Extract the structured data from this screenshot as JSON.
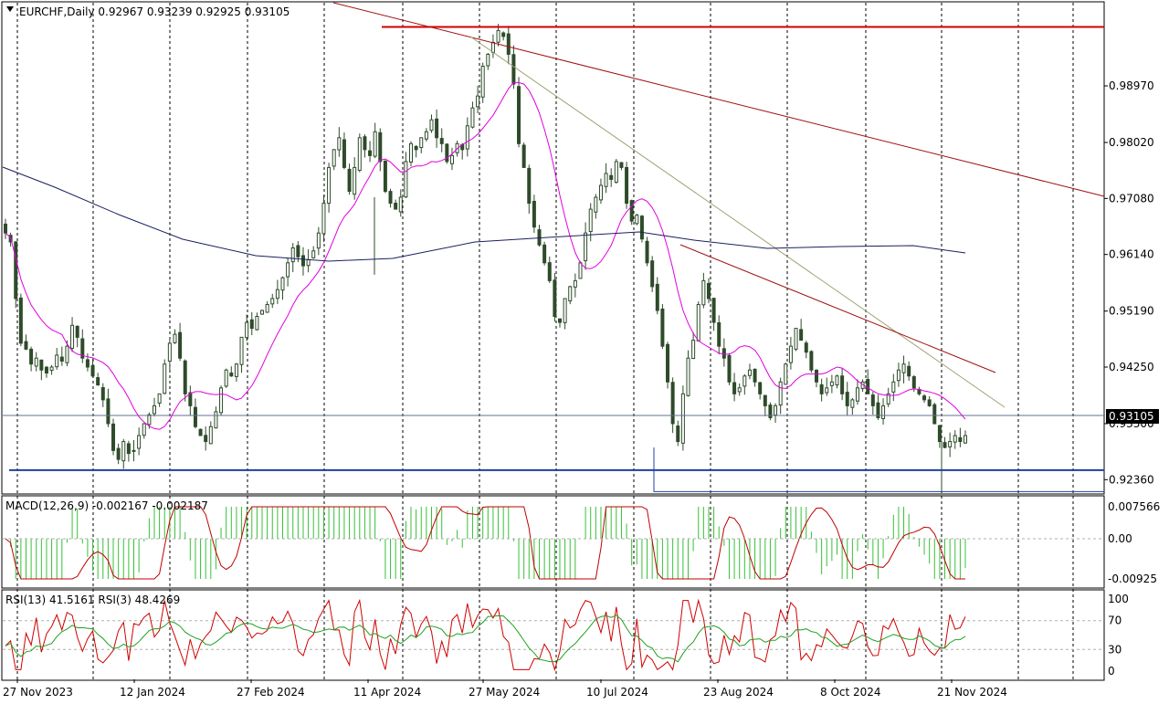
{
  "colors": {
    "background": "#ffffff",
    "grid": "#000000",
    "candle": "#2e4b2a",
    "ma_short": "#e000e0",
    "ma_long": "#1a1f5e",
    "resistance": "#d00000",
    "support": "#2040a0",
    "trend_main": "#a01010",
    "trend_light": "#a0a070",
    "macd_hist": "#38c038",
    "macd_signal": "#c00000",
    "rsi_slow": "#20a020",
    "rsi_fast": "#d00000",
    "price_tag_bg": "#000000",
    "price_tag_fg": "#ffffff"
  },
  "main_panel": {
    "header": "EURCHF,Daily  0.92967 0.93239 0.92925 0.93105",
    "current_price": "0.93105"
  },
  "macd_panel": {
    "header": "MACD(12,26,9) -0.002167 -0.002187"
  },
  "rsi_panel": {
    "header": "RSI(13) 41.5161  RSI(3) 48.4269"
  },
  "chart_data": {
    "type": "candlestick",
    "symbol": "EURCHF",
    "timeframe": "Daily",
    "ohlc": {
      "open": 0.92967,
      "high": 0.93239,
      "low": 0.92925,
      "close": 0.93105
    },
    "x_tick_labels": [
      "27 Nov 2023",
      "12 Jan 2024",
      "27 Feb 2024",
      "11 Apr 2024",
      "27 May 2024",
      "10 Jul 2024",
      "23 Aug 2024",
      "8 Oct 2024",
      "21 Nov 2024"
    ],
    "y_tick_labels": [
      "0.98970",
      "0.98020",
      "0.97080",
      "0.96140",
      "0.95190",
      "0.94250",
      "0.93300",
      "0.92360"
    ],
    "ylim": [
      0.9215,
      1.0035
    ],
    "series": [
      {
        "type": "candles",
        "points": [
          0.965,
          0.9635,
          0.954,
          0.9465,
          0.9455,
          0.943,
          0.944,
          0.942,
          0.9415,
          0.9425,
          0.9445,
          0.9435,
          0.946,
          0.9495,
          0.9475,
          0.944,
          0.9425,
          0.941,
          0.9395,
          0.937,
          0.933,
          0.9285,
          0.927,
          0.93,
          0.928,
          0.9285,
          0.931,
          0.933,
          0.9345,
          0.936,
          0.938,
          0.943,
          0.9465,
          0.948,
          0.944,
          0.938,
          0.936,
          0.9325,
          0.931,
          0.93,
          0.9325,
          0.935,
          0.939,
          0.942,
          0.941,
          0.943,
          0.9475,
          0.95,
          0.949,
          0.951,
          0.952,
          0.953,
          0.954,
          0.9555,
          0.9575,
          0.96,
          0.9625,
          0.961,
          0.9595,
          0.9605,
          0.962,
          0.965,
          0.97,
          0.976,
          0.979,
          0.981,
          0.976,
          0.972,
          0.976,
          0.981,
          0.979,
          0.978,
          0.982,
          0.977,
          0.972,
          0.97,
          0.969,
          0.971,
          0.977,
          0.98,
          0.979,
          0.981,
          0.982,
          0.984,
          0.981,
          0.98,
          0.977,
          0.978,
          0.98,
          0.979,
          0.983,
          0.986,
          0.988,
          0.993,
          0.995,
          0.997,
          0.999,
          0.998,
          0.995,
          0.99,
          0.98,
          0.976,
          0.97,
          0.966,
          0.963,
          0.96,
          0.957,
          0.951,
          0.95,
          0.954,
          0.956,
          0.957,
          0.96,
          0.965,
          0.969,
          0.971,
          0.973,
          0.975,
          0.974,
          0.977,
          0.976,
          0.97,
          0.967,
          0.968,
          0.964,
          0.96,
          0.956,
          0.952,
          0.946,
          0.94,
          0.933,
          0.93,
          0.938,
          0.944,
          0.947,
          0.953,
          0.957,
          0.954,
          0.95,
          0.946,
          0.944,
          0.94,
          0.938,
          0.939,
          0.941,
          0.942,
          0.94,
          0.938,
          0.936,
          0.934,
          0.936,
          0.94,
          0.943,
          0.946,
          0.949,
          0.947,
          0.945,
          0.942,
          0.94,
          0.938,
          0.939,
          0.94,
          0.941,
          0.938,
          0.936,
          0.937,
          0.939,
          0.94,
          0.938,
          0.936,
          0.934,
          0.936,
          0.938,
          0.94,
          0.942,
          0.943,
          0.941,
          0.939,
          0.938,
          0.937,
          0.936,
          0.933,
          0.93,
          0.929,
          0.93,
          0.931,
          0.93,
          0.931
        ]
      },
      {
        "name": "",
        "type": "line",
        "points": "moving average (magenta)"
      },
      {
        "name": "",
        "type": "line",
        "points": "moving average (navy)"
      }
    ],
    "horizontal_levels": [
      0.9996,
      0.9252,
      0.9216
    ],
    "macd": {
      "range": [
        -0.00925,
        0.007566
      ],
      "y_tick_labels": [
        "0.007566",
        "0.00",
        "-0.00925"
      ]
    },
    "rsi": {
      "range": [
        0,
        100
      ],
      "y_tick_labels": [
        "100",
        "70",
        "30",
        "0"
      ]
    }
  }
}
